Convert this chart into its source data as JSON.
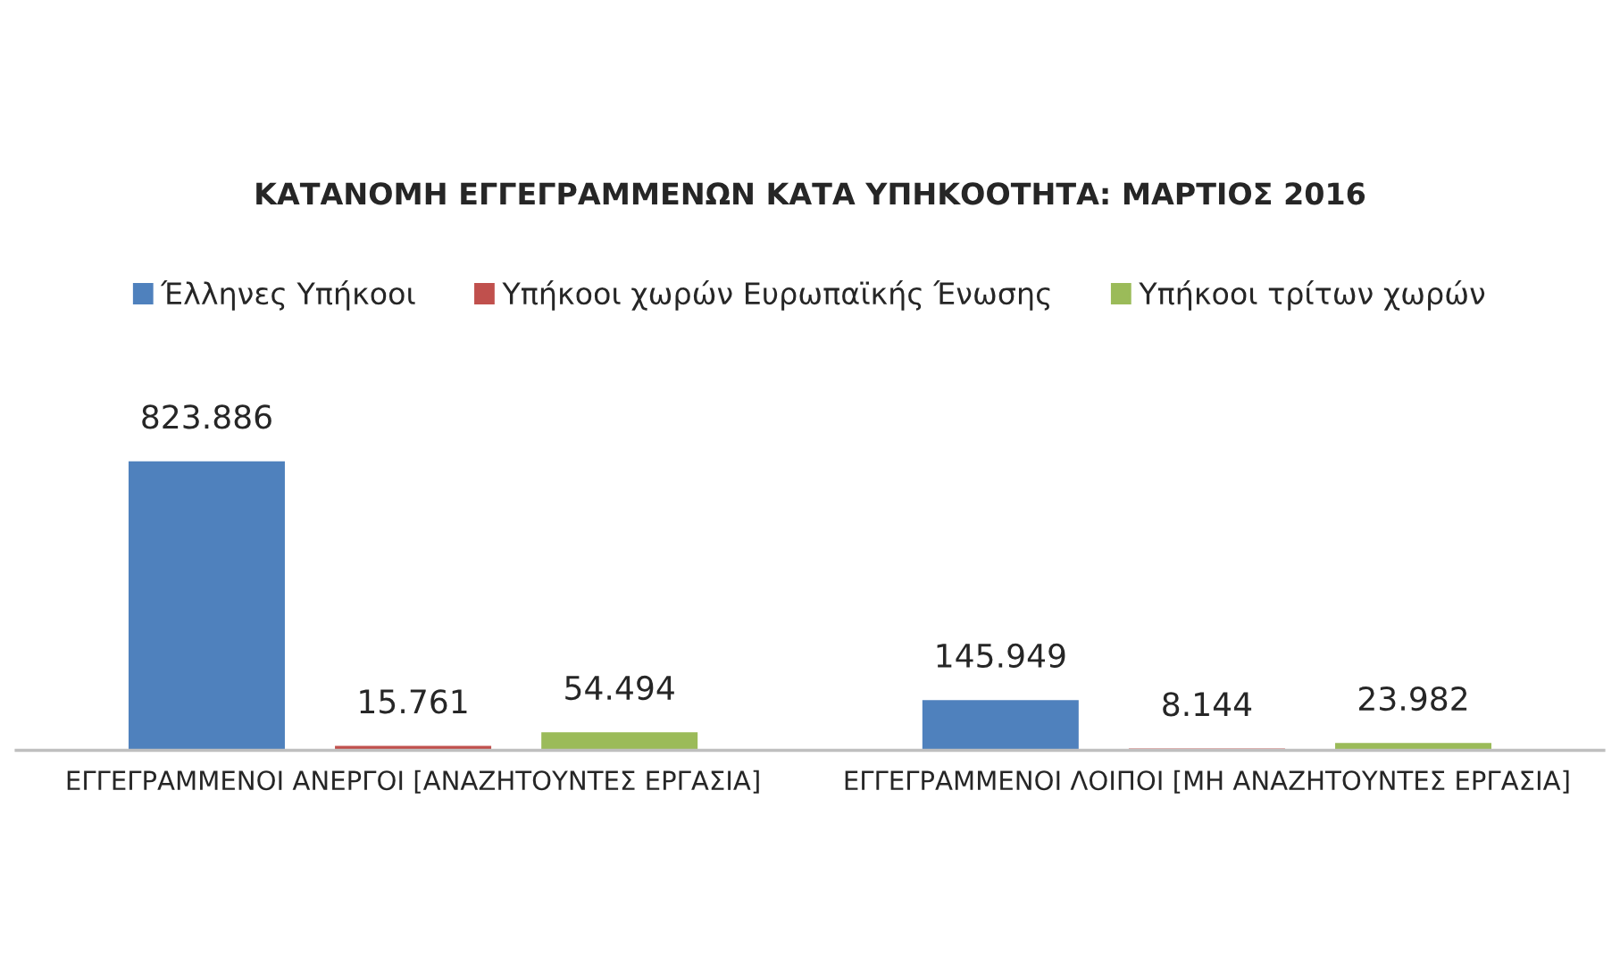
{
  "chart_data": {
    "type": "bar",
    "title": "ΚΑΤΑΝΟΜΗ ΕΓΓΕΓΡΑΜΜΕΝΩΝ ΚΑΤΑ ΥΠΗΚΟΟΤΗΤΑ: ΜΑΡΤΙΟΣ 2016",
    "categories": [
      "ΕΓΓΕΓΡΑΜΜΕΝΟΙ ΑΝΕΡΓΟΙ [ΑΝΑΖΗΤΟΥΝΤΕΣ ΕΡΓΑΣΙΑ]",
      "ΕΓΓΕΓΡΑΜΜΕΝΟΙ ΛΟΙΠΟΙ [ΜΗ ΑΝΑΖΗΤΟΥΝΤΕΣ ΕΡΓΑΣΙΑ]"
    ],
    "series": [
      {
        "name": "Έλληνες Υπήκοοι",
        "color": "#4f81bd",
        "values": [
          823886,
          145949
        ],
        "value_labels": [
          "823.886",
          "145.949"
        ]
      },
      {
        "name": "Υπήκοοι χωρών Ευρωπαϊκής Ένωσης",
        "color": "#c0504d",
        "values": [
          15761,
          8144
        ],
        "value_labels": [
          "15.761",
          "8.144"
        ]
      },
      {
        "name": "Υπήκοοι τρίτων χωρών",
        "color": "#9bbb59",
        "values": [
          54494,
          23982
        ],
        "value_labels": [
          "54.494",
          "23.982"
        ]
      }
    ],
    "legend": "top",
    "grid": false,
    "tick_labels": "x"
  }
}
